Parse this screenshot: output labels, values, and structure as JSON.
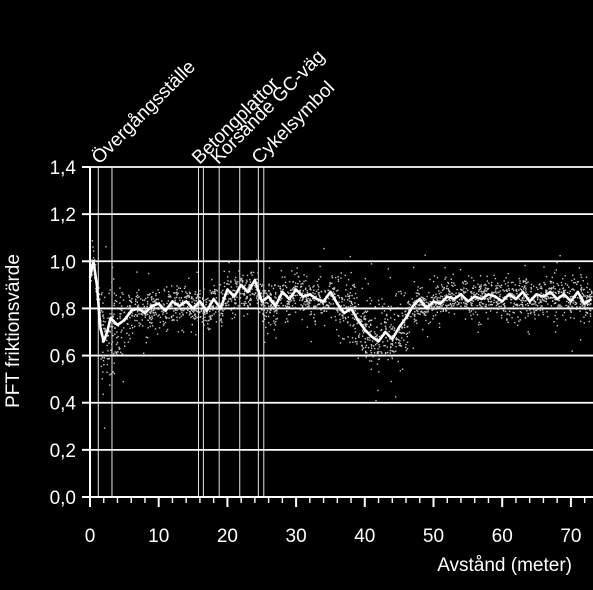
{
  "chart_data": {
    "type": "line",
    "title": "",
    "xlabel": "Avstånd (meter)",
    "ylabel": "PFT friktionsvärde",
    "xlim": [
      0,
      73
    ],
    "ylim": [
      0,
      1.4
    ],
    "x_ticks": [
      0,
      10,
      20,
      30,
      40,
      50,
      60,
      70
    ],
    "x_tick_labels": [
      "0",
      "10",
      "20",
      "30",
      "40",
      "50",
      "60",
      "70"
    ],
    "y_ticks": [
      0,
      0.2,
      0.4,
      0.6,
      0.8,
      1.0,
      1.2,
      1.4
    ],
    "y_tick_labels": [
      "0,0",
      "0,2",
      "0,4",
      "0,6",
      "0,8",
      "1,0",
      "1,2",
      "1,4"
    ],
    "grid": "horizontal",
    "colors": {
      "background": "#000000",
      "foreground": "#ffffff",
      "scatter": "#c8c8c8"
    },
    "annotations": [
      {
        "label": "Övergångsställe",
        "x_start": 1.2,
        "x_end": 3.2
      },
      {
        "label": "Betongplattor",
        "x_start": 15.8,
        "x_end": 16.5
      },
      {
        "label": "Korsande GC-väg",
        "x_start": 18.8,
        "x_end": 21.8
      },
      {
        "label": "Cykelsymbol",
        "x_start": 24.5,
        "x_end": 25.3
      }
    ],
    "series": [
      {
        "kind": "line",
        "x": [
          0,
          0.5,
          1,
          1.5,
          2,
          2.5,
          3,
          4,
          5,
          6,
          7,
          8,
          9,
          10,
          11,
          12,
          13,
          14,
          15,
          16,
          17,
          18,
          19,
          20,
          21,
          22,
          23,
          24,
          25,
          26,
          27,
          28,
          29,
          30,
          31,
          32,
          33,
          34,
          35,
          36,
          37,
          38,
          39,
          40,
          41,
          42,
          43,
          44,
          45,
          46,
          47,
          48,
          49,
          50,
          51,
          52,
          53,
          54,
          55,
          56,
          57,
          58,
          59,
          60,
          61,
          62,
          63,
          64,
          65,
          66,
          67,
          68,
          69,
          70,
          71,
          72,
          73
        ],
        "y": [
          0.93,
          1.0,
          0.9,
          0.72,
          0.66,
          0.7,
          0.76,
          0.73,
          0.75,
          0.79,
          0.8,
          0.78,
          0.81,
          0.82,
          0.79,
          0.83,
          0.81,
          0.83,
          0.8,
          0.83,
          0.79,
          0.84,
          0.8,
          0.88,
          0.85,
          0.9,
          0.87,
          0.92,
          0.83,
          0.85,
          0.81,
          0.87,
          0.84,
          0.88,
          0.85,
          0.86,
          0.84,
          0.83,
          0.87,
          0.82,
          0.78,
          0.8,
          0.75,
          0.71,
          0.68,
          0.66,
          0.7,
          0.67,
          0.72,
          0.76,
          0.81,
          0.84,
          0.8,
          0.83,
          0.82,
          0.85,
          0.84,
          0.86,
          0.83,
          0.85,
          0.84,
          0.86,
          0.85,
          0.83,
          0.86,
          0.84,
          0.87,
          0.83,
          0.86,
          0.85,
          0.87,
          0.84,
          0.86,
          0.83,
          0.87,
          0.82,
          0.84
        ]
      },
      {
        "kind": "scatter",
        "description_only": false
      }
    ]
  }
}
